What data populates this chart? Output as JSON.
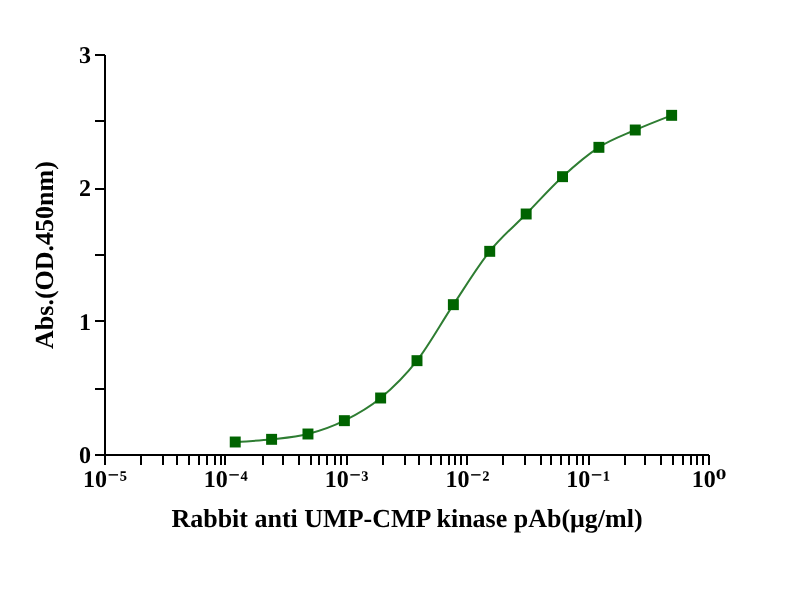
{
  "chart_data": {
    "type": "scatter",
    "xlabel": "Rabbit  anti UMP-CMP kinase  pAb(μg/ml)",
    "ylabel": "Abs.(OD.450nm)",
    "log": "x",
    "grid": false,
    "xlim": [
      1e-05,
      1
    ],
    "ylim": [
      0,
      3
    ],
    "xticks": [
      {
        "value": 1e-05,
        "label": "10⁻⁵"
      },
      {
        "value": 2e-05,
        "label": null
      },
      {
        "value": 3e-05,
        "label": null
      },
      {
        "value": 4e-05,
        "label": null
      },
      {
        "value": 5e-05,
        "label": null
      },
      {
        "value": 6e-05,
        "label": null
      },
      {
        "value": 7e-05,
        "label": null
      },
      {
        "value": 8e-05,
        "label": null
      },
      {
        "value": 9e-05,
        "label": null
      },
      {
        "value": 0.0001,
        "label": "10⁻⁴"
      },
      {
        "value": 0.0002,
        "label": null
      },
      {
        "value": 0.0003,
        "label": null
      },
      {
        "value": 0.0004,
        "label": null
      },
      {
        "value": 0.0005,
        "label": null
      },
      {
        "value": 0.0006,
        "label": null
      },
      {
        "value": 0.0007,
        "label": null
      },
      {
        "value": 0.0008,
        "label": null
      },
      {
        "value": 0.0009,
        "label": null
      },
      {
        "value": 0.001,
        "label": "10⁻³"
      },
      {
        "value": 0.002,
        "label": null
      },
      {
        "value": 0.003,
        "label": null
      },
      {
        "value": 0.004,
        "label": null
      },
      {
        "value": 0.005,
        "label": null
      },
      {
        "value": 0.006,
        "label": null
      },
      {
        "value": 0.007,
        "label": null
      },
      {
        "value": 0.008,
        "label": null
      },
      {
        "value": 0.009,
        "label": null
      },
      {
        "value": 0.01,
        "label": "10⁻²"
      },
      {
        "value": 0.02,
        "label": null
      },
      {
        "value": 0.03,
        "label": null
      },
      {
        "value": 0.04,
        "label": null
      },
      {
        "value": 0.05,
        "label": null
      },
      {
        "value": 0.06,
        "label": null
      },
      {
        "value": 0.07,
        "label": null
      },
      {
        "value": 0.08,
        "label": null
      },
      {
        "value": 0.09,
        "label": null
      },
      {
        "value": 0.1,
        "label": "10⁻¹"
      },
      {
        "value": 0.2,
        "label": null
      },
      {
        "value": 0.3,
        "label": null
      },
      {
        "value": 0.4,
        "label": null
      },
      {
        "value": 0.5,
        "label": null
      },
      {
        "value": 0.6,
        "label": null
      },
      {
        "value": 0.7,
        "label": null
      },
      {
        "value": 0.8,
        "label": null
      },
      {
        "value": 0.9,
        "label": null
      },
      {
        "value": 1,
        "label": "10⁰"
      }
    ],
    "yticks": [
      0,
      {
        "value": 0.5,
        "label": null
      },
      1,
      {
        "value": 1.5,
        "label": null
      },
      2,
      {
        "value": 2.5,
        "label": null
      },
      3
    ],
    "series": [
      {
        "type": "line",
        "color": "#2e7d32",
        "marker": "none",
        "line_style": "solid",
        "x": [
          0.000122,
          0.000244,
          0.000488,
          0.000977,
          0.00195,
          0.0039,
          0.0078,
          0.0156,
          0.03125,
          0.0625,
          0.125,
          0.25,
          0.5
        ],
        "values": [
          0.09,
          0.11,
          0.15,
          0.25,
          0.42,
          0.7,
          1.12,
          1.52,
          1.8,
          2.08,
          2.3,
          2.43,
          2.54
        ]
      },
      {
        "type": "scatter",
        "color": "#006400",
        "marker": "square",
        "x": [
          0.000122,
          0.000244,
          0.000488,
          0.000977,
          0.00195,
          0.0039,
          0.0078,
          0.0156,
          0.03125,
          0.0625,
          0.125,
          0.25,
          0.5
        ],
        "values": [
          0.09,
          0.11,
          0.15,
          0.25,
          0.42,
          0.7,
          1.12,
          1.52,
          1.8,
          2.08,
          2.3,
          2.43,
          2.54
        ]
      }
    ]
  }
}
